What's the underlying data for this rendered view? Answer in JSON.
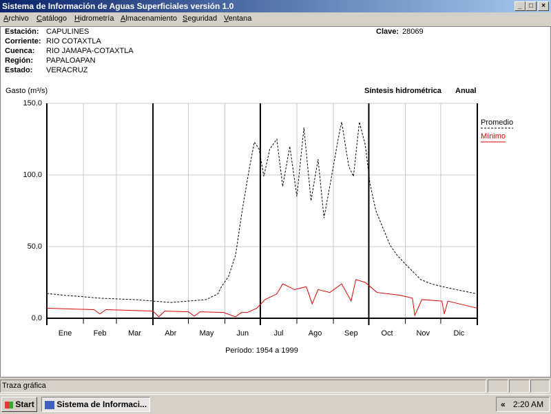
{
  "window": {
    "title": "Sistema de Información de Aguas Superficiales  versión 1.0",
    "menu": [
      "Archivo",
      "Catálogo",
      "Hidrometría",
      "Almacenamiento",
      "Seguridad",
      "Ventana"
    ]
  },
  "station": {
    "fields": [
      {
        "label": "Estación:",
        "value": "CAPULINES"
      },
      {
        "label": "Corriente:",
        "value": "RIO COTAXTLA"
      },
      {
        "label": "Cuenca:",
        "value": "RIO JAMAPA-COTAXTLA"
      },
      {
        "label": "Región:",
        "value": "PAPALOAPAN"
      },
      {
        "label": "Estado:",
        "value": "VERACRUZ"
      }
    ],
    "clave_label": "Clave:",
    "clave": "28069"
  },
  "chart_data": {
    "type": "line",
    "y_label": "Gasto (m³/s)",
    "title": "Síntesis hidrométrica",
    "subtitle": "Anual",
    "period": "Período:  1954 a 1999",
    "xlim": [
      0,
      365
    ],
    "xticks": [
      {
        "value": 15.5,
        "label": "Ene"
      },
      {
        "value": 45,
        "label": "Feb"
      },
      {
        "value": 74.5,
        "label": "Mar"
      },
      {
        "value": 105,
        "label": "Abr"
      },
      {
        "value": 135.5,
        "label": "May"
      },
      {
        "value": 166,
        "label": "Jun"
      },
      {
        "value": 196.5,
        "label": "Jul"
      },
      {
        "value": 227.5,
        "label": "Ago"
      },
      {
        "value": 258,
        "label": "Sep"
      },
      {
        "value": 288.5,
        "label": "Oct"
      },
      {
        "value": 319,
        "label": "Nov"
      },
      {
        "value": 349.5,
        "label": "Dic"
      }
    ],
    "x_gridlines": [
      31,
      59,
      120,
      151,
      212,
      243,
      304,
      334
    ],
    "x_major_lines": [
      0,
      90,
      181,
      273,
      365
    ],
    "ylim": [
      0,
      150
    ],
    "yticks": [
      {
        "value": 0,
        "label": "0.0"
      },
      {
        "value": 50,
        "label": "50.0"
      },
      {
        "value": 100,
        "label": "100.0"
      },
      {
        "value": 150,
        "label": "150.0"
      }
    ],
    "grid": true,
    "legend": "right",
    "series": [
      {
        "name": "Promedio",
        "color": "#000000",
        "dashed": true,
        "x": [
          0,
          15,
          31,
          45,
          59,
          75,
          90,
          105,
          120,
          135,
          145,
          148,
          154,
          160,
          166,
          172,
          176,
          180,
          184,
          189,
          195,
          200,
          206,
          212,
          218,
          224,
          230,
          235,
          241,
          247,
          250,
          256,
          260,
          265,
          270,
          274,
          279,
          285,
          291,
          297,
          305,
          311,
          317,
          326,
          341,
          365
        ],
        "values": [
          17.3,
          16,
          15,
          14,
          13.5,
          13,
          12,
          11,
          12,
          13,
          17,
          22,
          29,
          44,
          77,
          106,
          123,
          118,
          99,
          118,
          125,
          92,
          120,
          85,
          133,
          82,
          111,
          70,
          97,
          125,
          137,
          106,
          99,
          137,
          121,
          94,
          75,
          63,
          51,
          44,
          37,
          32,
          27,
          24,
          21,
          17
        ]
      },
      {
        "name": "Mínimo",
        "color": "#dd0000",
        "dashed": false,
        "x": [
          0,
          20,
          40,
          45,
          50,
          70,
          90,
          95,
          100,
          120,
          125,
          130,
          150,
          160,
          165,
          170,
          178,
          185,
          195,
          200,
          210,
          220,
          225,
          230,
          240,
          250,
          258,
          262,
          270,
          280,
          300,
          310,
          312,
          318,
          335,
          337,
          340,
          365
        ],
        "values": [
          7,
          6.5,
          6,
          3,
          6,
          5.5,
          5,
          1,
          5,
          4.5,
          1.5,
          4.5,
          4,
          1,
          4,
          4,
          7,
          13,
          17,
          24,
          20,
          22,
          10,
          20,
          18,
          24,
          12,
          27,
          25,
          18,
          16,
          14,
          2,
          13,
          12,
          3,
          12,
          7
        ]
      }
    ]
  },
  "status": {
    "text": "Traza gráfica"
  },
  "taskbar": {
    "start": "Start",
    "task": "Sistema de Informaci...",
    "chevron": "«",
    "clock": "2:20 AM"
  }
}
